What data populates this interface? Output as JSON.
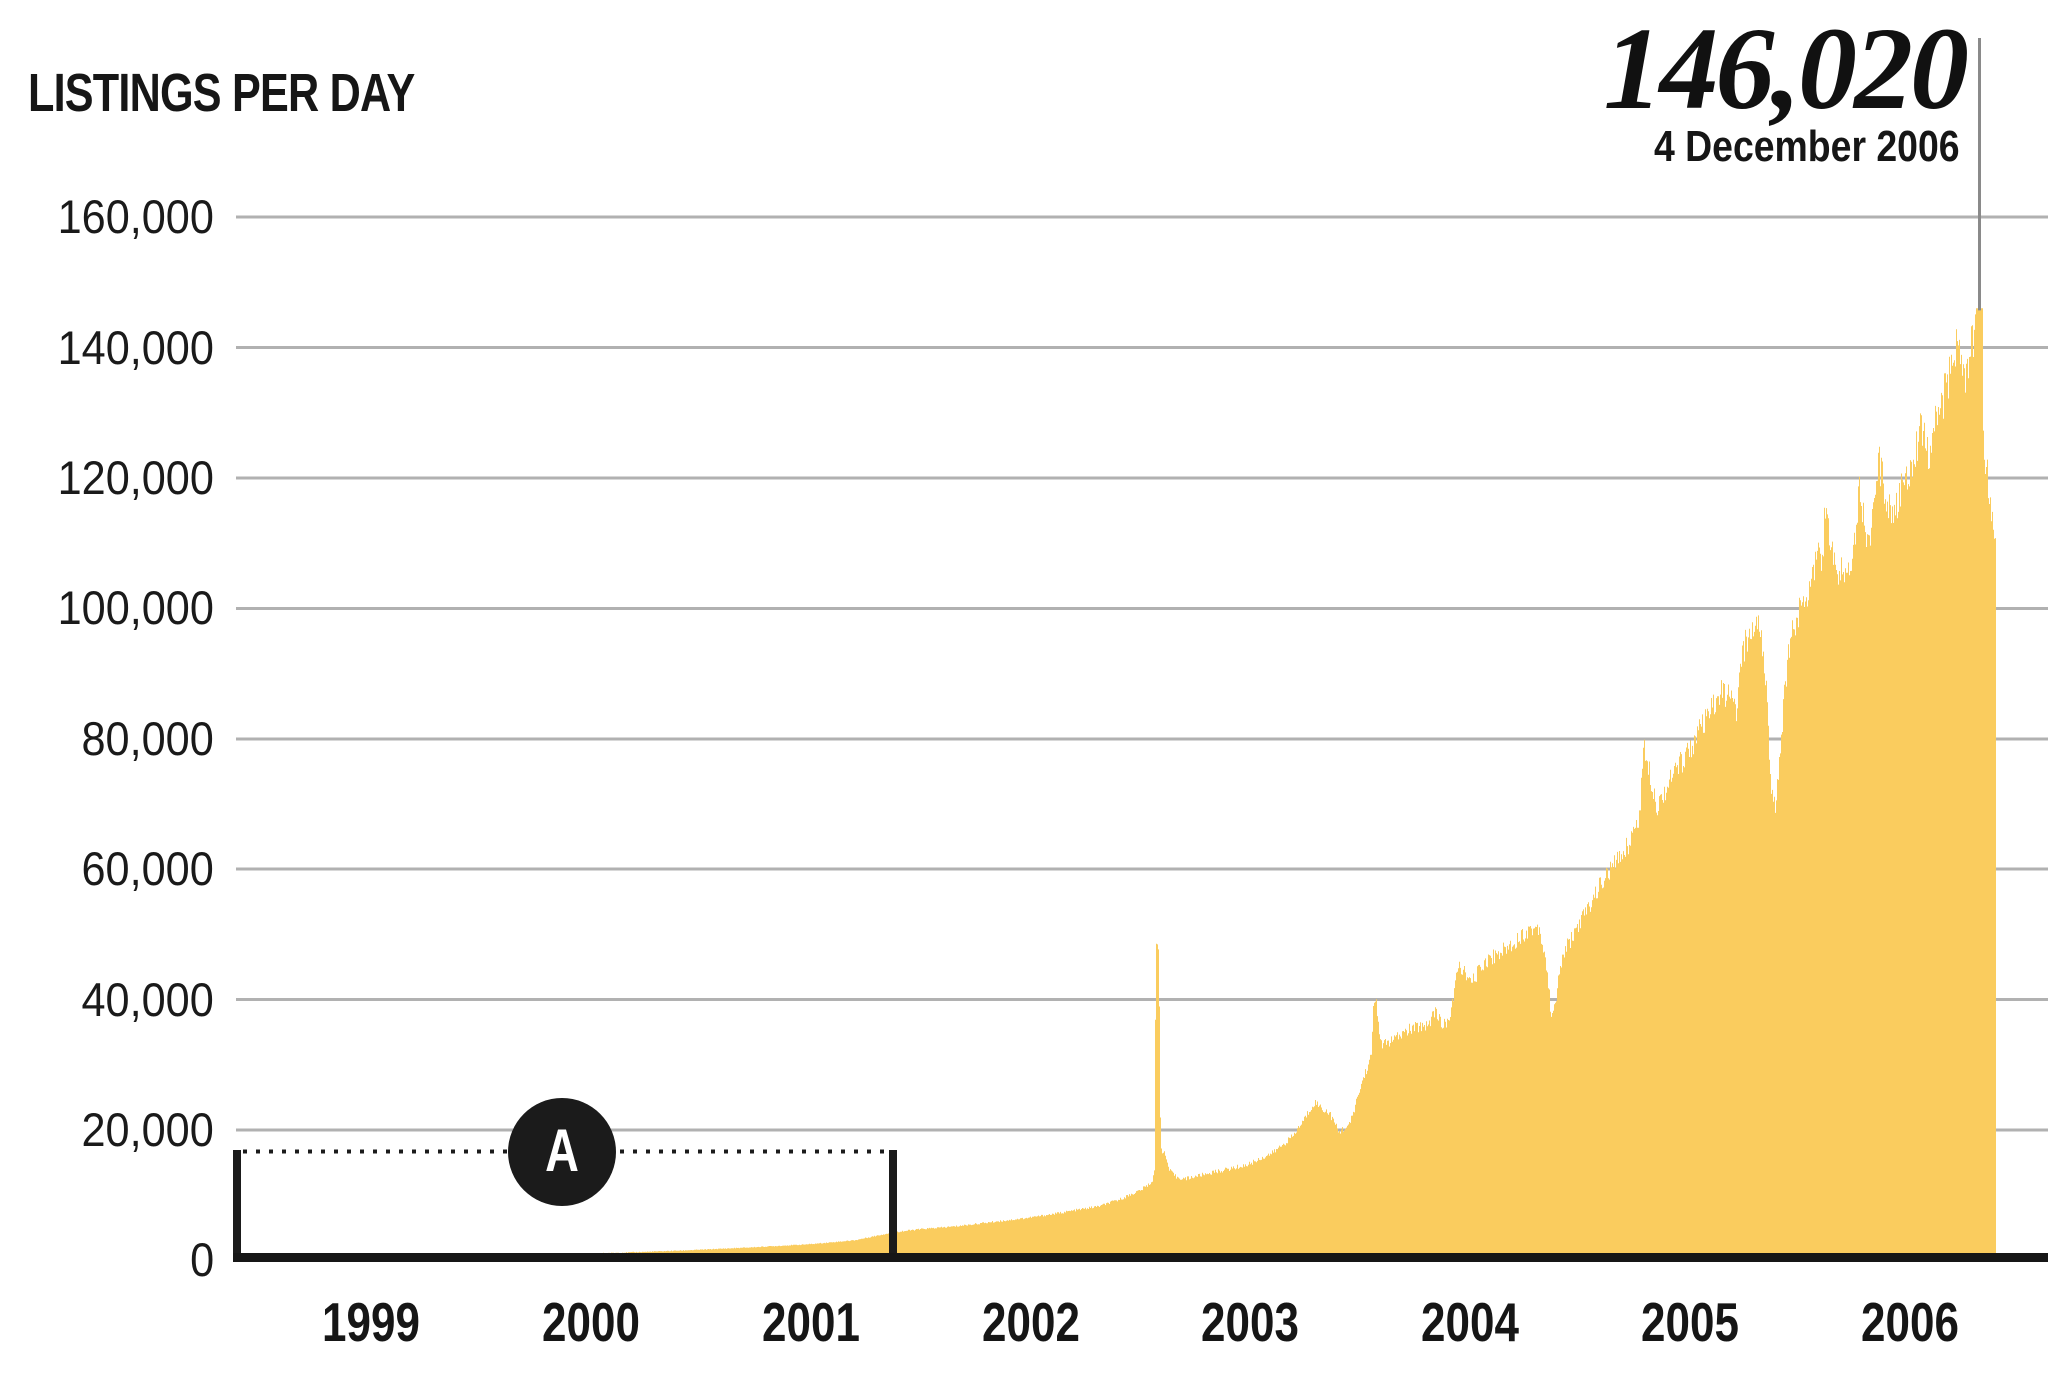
{
  "header": {
    "title": "LISTINGS PER DAY",
    "big_number": "146,020",
    "big_number_date": "4 December 2006"
  },
  "annotation": {
    "label": "A"
  },
  "colors": {
    "area_yellow": "#FACC5E",
    "gridline_gray": "#B1B1B1",
    "axis_black": "#161616",
    "annotation_black": "#1B1B1B",
    "callout_line_gray": "#8A8A8A",
    "text_black": "#161616",
    "background": "#FFFFFF"
  },
  "chart_data": {
    "type": "area",
    "title": "LISTINGS PER DAY",
    "ylabel": "",
    "xlabel": "",
    "legend": "none",
    "grid": "horizontal",
    "callout": {
      "value": 146020,
      "label": "146,020",
      "date_label": "4 December 2006",
      "t": 2006.81
    },
    "x_axis": {
      "range": [
        1998.89,
        2007.12
      ],
      "ticks": [
        "1999",
        "2000",
        "2001",
        "2002",
        "2003",
        "2004",
        "2005",
        "2006"
      ],
      "tick_years": [
        1999,
        2000,
        2001,
        2002,
        2003,
        2004,
        2005,
        2006
      ]
    },
    "y_axis": {
      "range": [
        0,
        160000
      ],
      "tick_values": [
        0,
        20000,
        40000,
        60000,
        80000,
        100000,
        120000,
        140000,
        160000
      ],
      "tick_labels": [
        "0",
        "20,000",
        "40,000",
        "60,000",
        "80,000",
        "100,000",
        "120,000",
        "140,000",
        "160,000"
      ]
    },
    "annotation_bracket": {
      "label": "A",
      "t_start": 1998.9,
      "t_end": 2001.87,
      "level": 16600,
      "note": "bracket spanning 1999 through mid-2001 low-volume era"
    },
    "series": [
      {
        "name": "Listings per day",
        "points": [
          [
            1999.11,
            350
          ],
          [
            1999.4,
            450
          ],
          [
            1999.75,
            560
          ],
          [
            2000.0,
            700
          ],
          [
            2000.3,
            900
          ],
          [
            2000.6,
            1150
          ],
          [
            2000.9,
            1500
          ],
          [
            2001.2,
            1950
          ],
          [
            2001.5,
            2500
          ],
          [
            2001.7,
            3100
          ],
          [
            2001.87,
            4300
          ],
          [
            2002.0,
            4800
          ],
          [
            2002.15,
            5200
          ],
          [
            2002.3,
            5800
          ],
          [
            2002.48,
            6500
          ],
          [
            2002.6,
            7100
          ],
          [
            2002.72,
            7800
          ],
          [
            2002.81,
            8300
          ],
          [
            2002.9,
            9300
          ],
          [
            2003.0,
            10800
          ],
          [
            2003.05,
            12000
          ],
          [
            2003.062,
            14000
          ],
          [
            2003.068,
            47900
          ],
          [
            2003.082,
            47900
          ],
          [
            2003.09,
            17200
          ],
          [
            2003.11,
            16200
          ],
          [
            2003.13,
            13800
          ],
          [
            2003.16,
            12800
          ],
          [
            2003.2,
            12500
          ],
          [
            2003.3,
            13300
          ],
          [
            2003.48,
            14600
          ],
          [
            2003.6,
            16500
          ],
          [
            2003.69,
            19000
          ],
          [
            2003.74,
            21500
          ],
          [
            2003.79,
            24300
          ],
          [
            2003.83,
            23200
          ],
          [
            2003.86,
            22500
          ],
          [
            2003.9,
            19700
          ],
          [
            2003.95,
            20800
          ],
          [
            2004.01,
            27800
          ],
          [
            2004.05,
            31500
          ],
          [
            2004.058,
            39700
          ],
          [
            2004.072,
            39700
          ],
          [
            2004.09,
            33000
          ],
          [
            2004.15,
            33800
          ],
          [
            2004.22,
            35400
          ],
          [
            2004.28,
            36000
          ],
          [
            2004.31,
            36300
          ],
          [
            2004.34,
            38600
          ],
          [
            2004.37,
            35800
          ],
          [
            2004.41,
            37500
          ],
          [
            2004.44,
            44900
          ],
          [
            2004.46,
            44900
          ],
          [
            2004.5,
            42300
          ],
          [
            2004.56,
            45700
          ],
          [
            2004.63,
            47200
          ],
          [
            2004.68,
            48300
          ],
          [
            2004.71,
            49200
          ],
          [
            2004.76,
            50600
          ],
          [
            2004.81,
            51200
          ],
          [
            2004.84,
            46500
          ],
          [
            2004.865,
            38200
          ],
          [
            2004.88,
            38200
          ],
          [
            2004.9,
            43000
          ],
          [
            2004.92,
            47000
          ],
          [
            2005.0,
            52000
          ],
          [
            2005.05,
            55000
          ],
          [
            2005.09,
            57700
          ],
          [
            2005.15,
            60500
          ],
          [
            2005.22,
            64000
          ],
          [
            2005.27,
            68500
          ],
          [
            2005.283,
            78000
          ],
          [
            2005.3,
            78000
          ],
          [
            2005.32,
            74000
          ],
          [
            2005.35,
            69600
          ],
          [
            2005.39,
            72700
          ],
          [
            2005.45,
            76000
          ],
          [
            2005.54,
            81000
          ],
          [
            2005.6,
            84500
          ],
          [
            2005.64,
            87300
          ],
          [
            2005.68,
            86000
          ],
          [
            2005.71,
            84500
          ],
          [
            2005.74,
            93700
          ],
          [
            2005.78,
            96500
          ],
          [
            2005.8,
            98300
          ],
          [
            2005.82,
            97000
          ],
          [
            2005.845,
            88000
          ],
          [
            2005.865,
            71800
          ],
          [
            2005.885,
            69200
          ],
          [
            2005.92,
            84000
          ],
          [
            2005.94,
            91700
          ],
          [
            2005.97,
            97900
          ],
          [
            2006.0,
            99500
          ],
          [
            2006.03,
            102500
          ],
          [
            2006.07,
            107500
          ],
          [
            2006.1,
            108600
          ],
          [
            2006.115,
            115700
          ],
          [
            2006.13,
            110500
          ],
          [
            2006.16,
            106000
          ],
          [
            2006.22,
            105500
          ],
          [
            2006.25,
            112000
          ],
          [
            2006.268,
            119500
          ],
          [
            2006.29,
            113000
          ],
          [
            2006.31,
            110200
          ],
          [
            2006.34,
            116000
          ],
          [
            2006.358,
            122500
          ],
          [
            2006.39,
            116700
          ],
          [
            2006.43,
            114900
          ],
          [
            2006.46,
            118000
          ],
          [
            2006.5,
            122000
          ],
          [
            2006.53,
            125600
          ],
          [
            2006.56,
            128000
          ],
          [
            2006.585,
            123300
          ],
          [
            2006.61,
            128200
          ],
          [
            2006.64,
            131000
          ],
          [
            2006.67,
            134600
          ],
          [
            2006.7,
            139500
          ],
          [
            2006.715,
            142000
          ],
          [
            2006.73,
            137000
          ],
          [
            2006.745,
            134800
          ],
          [
            2006.76,
            136500
          ],
          [
            2006.775,
            140000
          ],
          [
            2006.79,
            141500
          ],
          [
            2006.797,
            146020
          ],
          [
            2006.828,
            146020
          ],
          [
            2006.833,
            123200
          ],
          [
            2006.85,
            123200
          ],
          [
            2006.855,
            114700
          ],
          [
            2006.87,
            114700
          ],
          [
            2006.875,
            113200
          ],
          [
            2006.888,
            113200
          ]
        ]
      }
    ]
  }
}
